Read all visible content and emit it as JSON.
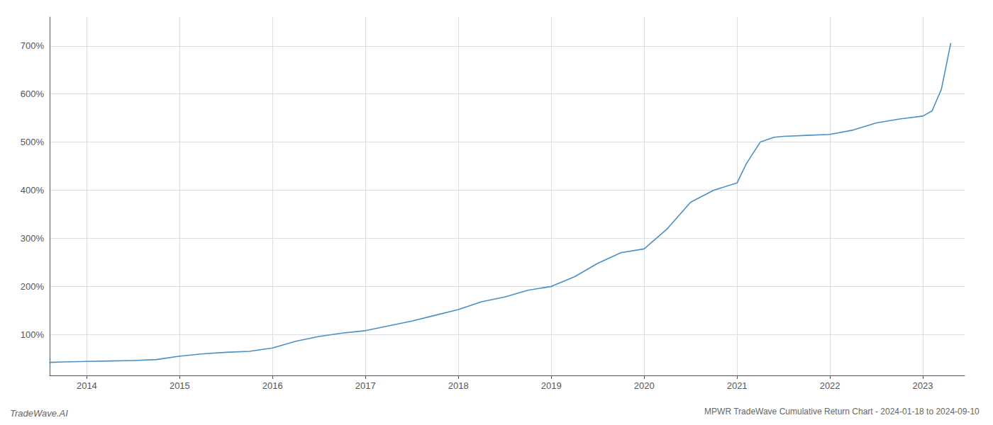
{
  "chart_data": {
    "type": "line",
    "title": "MPWR TradeWave Cumulative Return Chart - 2024-01-18 to 2024-09-10",
    "annotations": [
      "TradeWave.AI"
    ],
    "x": [
      2013.6,
      2013.75,
      2014.0,
      2014.25,
      2014.5,
      2014.75,
      2015.0,
      2015.25,
      2015.5,
      2015.75,
      2016.0,
      2016.25,
      2016.5,
      2016.75,
      2017.0,
      2017.25,
      2017.5,
      2017.75,
      2018.0,
      2018.25,
      2018.5,
      2018.75,
      2019.0,
      2019.25,
      2019.5,
      2019.75,
      2020.0,
      2020.25,
      2020.5,
      2020.75,
      2021.0,
      2021.1,
      2021.25,
      2021.4,
      2021.5,
      2021.75,
      2022.0,
      2022.25,
      2022.5,
      2022.75,
      2023.0,
      2023.1,
      2023.2,
      2023.3
    ],
    "values": [
      42,
      43,
      44,
      45,
      46,
      48,
      55,
      60,
      63,
      65,
      72,
      86,
      96,
      103,
      108,
      118,
      128,
      140,
      152,
      168,
      178,
      192,
      200,
      220,
      248,
      270,
      278,
      320,
      375,
      400,
      415,
      455,
      500,
      510,
      512,
      514,
      516,
      525,
      540,
      548,
      554,
      565,
      610,
      705
    ],
    "color": "#4a90c4",
    "xlim": [
      2013.6,
      2023.45
    ],
    "xticks": [
      2014,
      2015,
      2016,
      2017,
      2018,
      2019,
      2020,
      2021,
      2022,
      2023
    ],
    "ylim": [
      15,
      760
    ],
    "yticks": [
      {
        "value": 100,
        "label": "100%"
      },
      {
        "value": 200,
        "label": "200%"
      },
      {
        "value": 300,
        "label": "300%"
      },
      {
        "value": 400,
        "label": "400%"
      },
      {
        "value": 500,
        "label": "500%"
      },
      {
        "value": 600,
        "label": "600%"
      },
      {
        "value": 700,
        "label": "700%"
      }
    ],
    "grid": true
  }
}
